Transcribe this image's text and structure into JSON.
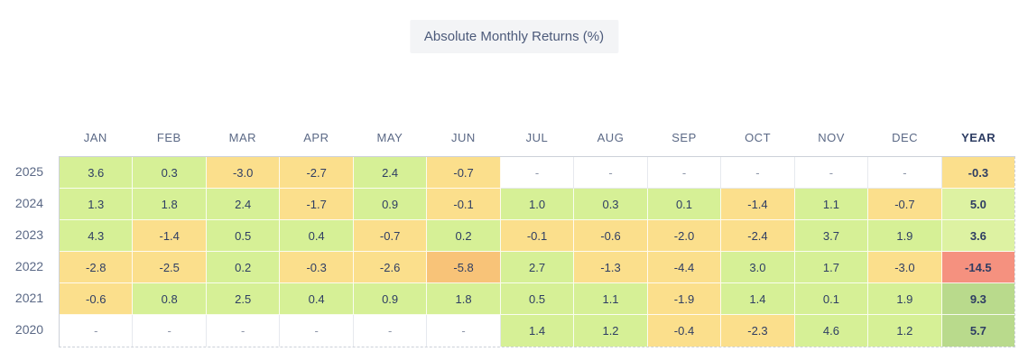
{
  "title": "Absolute Monthly Returns (%)",
  "palette": {
    "green": "#d6f096",
    "lgreen": "#ddf2a2",
    "dgreen": "#b9da8c",
    "yellow": "#fbdf8c",
    "orange": "#f8c378",
    "red": "#f5917f",
    "empty": "#ffffff"
  },
  "text_colors": {
    "value": "#2e3d63",
    "dash": "#8d95a8",
    "header": "#5b6986",
    "title": "#4c5a7a"
  },
  "table": {
    "columns": [
      "JAN",
      "FEB",
      "MAR",
      "APR",
      "MAY",
      "JUN",
      "JUL",
      "AUG",
      "SEP",
      "OCT",
      "NOV",
      "DEC",
      "YEAR"
    ],
    "rows": [
      {
        "year": "2025",
        "cells": [
          {
            "v": "3.6",
            "c": "green"
          },
          {
            "v": "0.3",
            "c": "green"
          },
          {
            "v": "-3.0",
            "c": "yellow"
          },
          {
            "v": "-2.7",
            "c": "yellow"
          },
          {
            "v": "2.4",
            "c": "green"
          },
          {
            "v": "-0.7",
            "c": "yellow"
          },
          {
            "v": "-",
            "c": "empty"
          },
          {
            "v": "-",
            "c": "empty"
          },
          {
            "v": "-",
            "c": "empty"
          },
          {
            "v": "-",
            "c": "empty"
          },
          {
            "v": "-",
            "c": "empty"
          },
          {
            "v": "-",
            "c": "empty"
          },
          {
            "v": "-0.3",
            "c": "yellow"
          }
        ]
      },
      {
        "year": "2024",
        "cells": [
          {
            "v": "1.3",
            "c": "green"
          },
          {
            "v": "1.8",
            "c": "green"
          },
          {
            "v": "2.4",
            "c": "green"
          },
          {
            "v": "-1.7",
            "c": "yellow"
          },
          {
            "v": "0.9",
            "c": "green"
          },
          {
            "v": "-0.1",
            "c": "yellow"
          },
          {
            "v": "1.0",
            "c": "green"
          },
          {
            "v": "0.3",
            "c": "green"
          },
          {
            "v": "0.1",
            "c": "green"
          },
          {
            "v": "-1.4",
            "c": "yellow"
          },
          {
            "v": "1.1",
            "c": "green"
          },
          {
            "v": "-0.7",
            "c": "yellow"
          },
          {
            "v": "5.0",
            "c": "lgreen"
          }
        ]
      },
      {
        "year": "2023",
        "cells": [
          {
            "v": "4.3",
            "c": "green"
          },
          {
            "v": "-1.4",
            "c": "yellow"
          },
          {
            "v": "0.5",
            "c": "green"
          },
          {
            "v": "0.4",
            "c": "green"
          },
          {
            "v": "-0.7",
            "c": "yellow"
          },
          {
            "v": "0.2",
            "c": "green"
          },
          {
            "v": "-0.1",
            "c": "yellow"
          },
          {
            "v": "-0.6",
            "c": "yellow"
          },
          {
            "v": "-2.0",
            "c": "yellow"
          },
          {
            "v": "-2.4",
            "c": "yellow"
          },
          {
            "v": "3.7",
            "c": "green"
          },
          {
            "v": "1.9",
            "c": "green"
          },
          {
            "v": "3.6",
            "c": "lgreen"
          }
        ]
      },
      {
        "year": "2022",
        "cells": [
          {
            "v": "-2.8",
            "c": "yellow"
          },
          {
            "v": "-2.5",
            "c": "yellow"
          },
          {
            "v": "0.2",
            "c": "green"
          },
          {
            "v": "-0.3",
            "c": "yellow"
          },
          {
            "v": "-2.6",
            "c": "yellow"
          },
          {
            "v": "-5.8",
            "c": "orange"
          },
          {
            "v": "2.7",
            "c": "green"
          },
          {
            "v": "-1.3",
            "c": "yellow"
          },
          {
            "v": "-4.4",
            "c": "yellow"
          },
          {
            "v": "3.0",
            "c": "green"
          },
          {
            "v": "1.7",
            "c": "green"
          },
          {
            "v": "-3.0",
            "c": "yellow"
          },
          {
            "v": "-14.5",
            "c": "red"
          }
        ]
      },
      {
        "year": "2021",
        "cells": [
          {
            "v": "-0.6",
            "c": "yellow"
          },
          {
            "v": "0.8",
            "c": "green"
          },
          {
            "v": "2.5",
            "c": "green"
          },
          {
            "v": "0.4",
            "c": "green"
          },
          {
            "v": "0.9",
            "c": "green"
          },
          {
            "v": "1.8",
            "c": "green"
          },
          {
            "v": "0.5",
            "c": "green"
          },
          {
            "v": "1.1",
            "c": "green"
          },
          {
            "v": "-1.9",
            "c": "yellow"
          },
          {
            "v": "1.4",
            "c": "green"
          },
          {
            "v": "0.1",
            "c": "green"
          },
          {
            "v": "1.9",
            "c": "green"
          },
          {
            "v": "9.3",
            "c": "dgreen"
          }
        ]
      },
      {
        "year": "2020",
        "cells": [
          {
            "v": "-",
            "c": "empty"
          },
          {
            "v": "-",
            "c": "empty"
          },
          {
            "v": "-",
            "c": "empty"
          },
          {
            "v": "-",
            "c": "empty"
          },
          {
            "v": "-",
            "c": "empty"
          },
          {
            "v": "-",
            "c": "empty"
          },
          {
            "v": "1.4",
            "c": "green"
          },
          {
            "v": "1.2",
            "c": "green"
          },
          {
            "v": "-0.4",
            "c": "yellow"
          },
          {
            "v": "-2.3",
            "c": "yellow"
          },
          {
            "v": "4.6",
            "c": "green"
          },
          {
            "v": "1.2",
            "c": "green"
          },
          {
            "v": "5.7",
            "c": "dgreen"
          }
        ]
      }
    ]
  },
  "chart_data": {
    "type": "heatmap",
    "title": "Absolute Monthly Returns (%)",
    "columns": [
      "JAN",
      "FEB",
      "MAR",
      "APR",
      "MAY",
      "JUN",
      "JUL",
      "AUG",
      "SEP",
      "OCT",
      "NOV",
      "DEC",
      "YEAR"
    ],
    "rows": [
      "2025",
      "2024",
      "2023",
      "2022",
      "2021",
      "2020"
    ],
    "values": [
      [
        3.6,
        0.3,
        -3.0,
        -2.7,
        2.4,
        -0.7,
        null,
        null,
        null,
        null,
        null,
        null,
        -0.3
      ],
      [
        1.3,
        1.8,
        2.4,
        -1.7,
        0.9,
        -0.1,
        1.0,
        0.3,
        0.1,
        -1.4,
        1.1,
        -0.7,
        5.0
      ],
      [
        4.3,
        -1.4,
        0.5,
        0.4,
        -0.7,
        0.2,
        -0.1,
        -0.6,
        -2.0,
        -2.4,
        3.7,
        1.9,
        3.6
      ],
      [
        -2.8,
        -2.5,
        0.2,
        -0.3,
        -2.6,
        -5.8,
        2.7,
        -1.3,
        -4.4,
        3.0,
        1.7,
        -3.0,
        -14.5
      ],
      [
        -0.6,
        0.8,
        2.5,
        0.4,
        0.9,
        1.8,
        0.5,
        1.1,
        -1.9,
        1.4,
        0.1,
        1.9,
        9.3
      ],
      [
        null,
        null,
        null,
        null,
        null,
        null,
        1.4,
        1.2,
        -0.4,
        -2.3,
        4.6,
        1.2,
        5.7
      ]
    ],
    "legend_position": "none",
    "color_scale": "green = positive, yellow = mild negative, orange = strong negative, red = severe negative year"
  }
}
